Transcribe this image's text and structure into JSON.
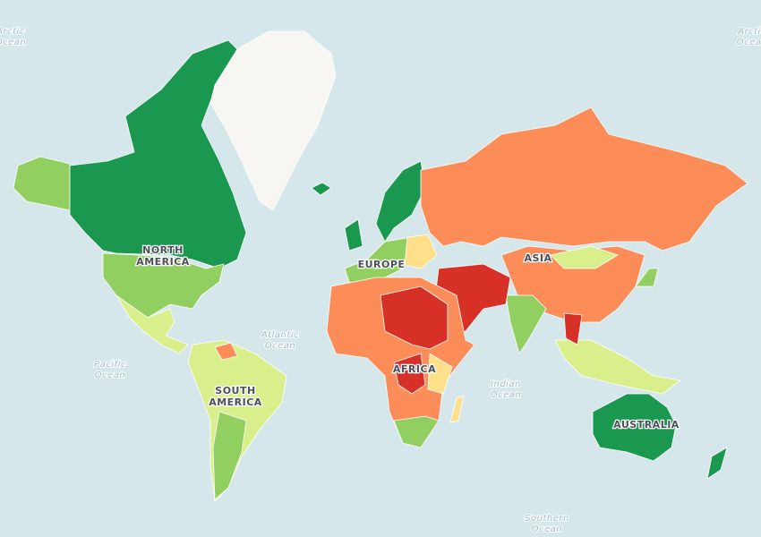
{
  "ocean_labels": [
    [
      "Arctic",
      "Ocean"
    ],
    [
      "Arctic",
      "Ocean"
    ],
    [
      "Atlantic",
      "Ocean"
    ],
    [
      "Pacific",
      "Ocean"
    ],
    [
      "Indian",
      "Ocean"
    ],
    [
      "Southern",
      "Ocean"
    ]
  ],
  "continent_labels": [
    [
      "NORTH",
      "AMERICA"
    ],
    [
      "EUROPE"
    ],
    [
      "ASIA"
    ],
    [
      "AFRICA"
    ],
    [
      "SOUTH",
      "AMERICA"
    ],
    [
      "AUSTRALIA"
    ]
  ]
}
